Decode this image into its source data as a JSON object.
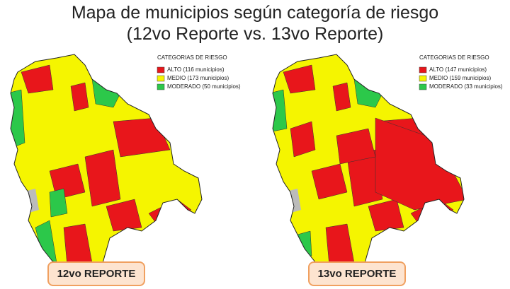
{
  "title": [
    "Mapa de municipios según categoría de riesgo",
    "(12vo Reporte vs. 13vo Reporte)"
  ],
  "maps": [
    {
      "legend": {
        "title": "CATEGORIAS DE RIESGO",
        "items": [
          {
            "label": "ALTO (116 municipios)",
            "color": "#e8161b"
          },
          {
            "label": "MEDIO (173 municipios)",
            "color": "#f5f500"
          },
          {
            "label": "MODERADO (50 municipios)",
            "color": "#2cc84a"
          }
        ]
      },
      "label": "12vo REPORTE"
    },
    {
      "legend": {
        "title": "CATEGORIAS DE RIESGO",
        "items": [
          {
            "label": "ALTO (147 municipios)",
            "color": "#e8161b"
          },
          {
            "label": "MEDIO (159 municipios)",
            "color": "#f5f500"
          },
          {
            "label": "MODERADO (33 municipios)",
            "color": "#2cc84a"
          }
        ]
      },
      "label": "13vo REPORTE"
    }
  ]
}
